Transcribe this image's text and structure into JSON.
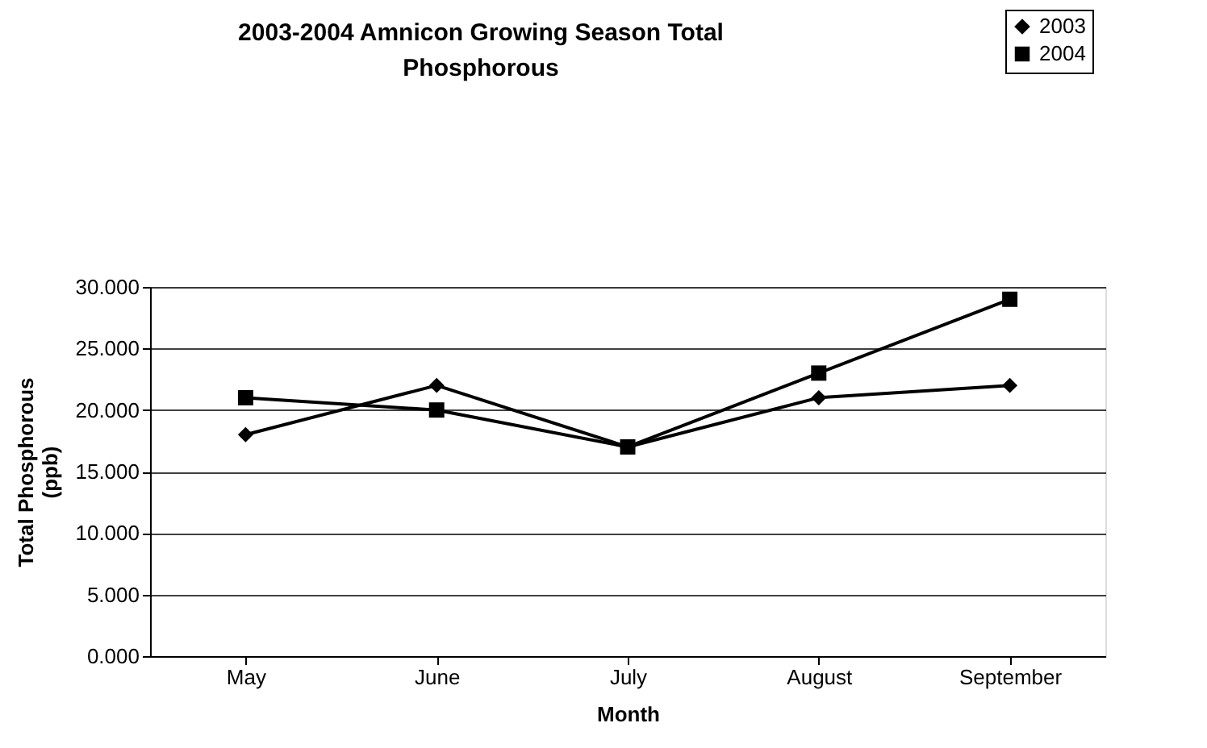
{
  "chart_data": {
    "type": "line",
    "title": "2003-2004 Amnicon Growing Season Total Phosphorous",
    "xlabel": "Month",
    "ylabel": "Total Phosphorous (ppb)",
    "categories": [
      "May",
      "June",
      "July",
      "August",
      "September"
    ],
    "series": [
      {
        "name": "2003",
        "color": "#000000",
        "marker": "diamond",
        "values": [
          18,
          22,
          17,
          21,
          22
        ]
      },
      {
        "name": "2004",
        "color": "#000000",
        "marker": "square",
        "values": [
          21,
          20,
          17,
          23,
          29
        ]
      }
    ],
    "ylim": [
      0,
      30
    ],
    "yticks": [
      {
        "value": 0,
        "label": "0.000"
      },
      {
        "value": 5,
        "label": "5.000"
      },
      {
        "value": 10,
        "label": "10.000"
      },
      {
        "value": 15,
        "label": "15.000"
      },
      {
        "value": 20,
        "label": "20.000"
      },
      {
        "value": 25,
        "label": "25.000"
      },
      {
        "value": 30,
        "label": "30.000"
      }
    ],
    "grid": "y",
    "legend": "top right",
    "line_style": "solid"
  }
}
